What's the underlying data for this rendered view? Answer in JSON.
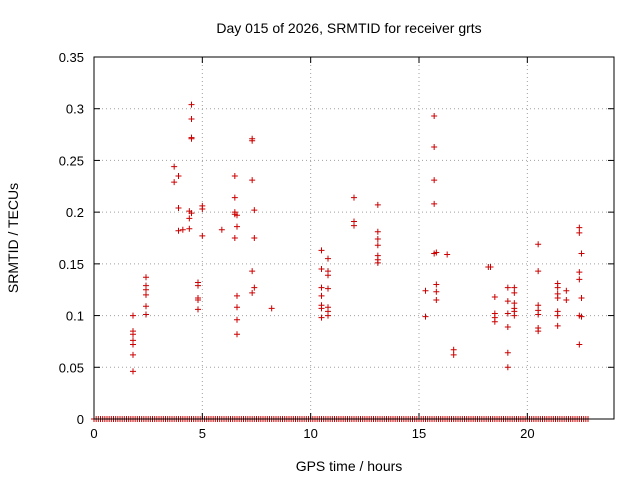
{
  "chart_data": {
    "type": "scatter",
    "title": "Day 015 of 2026, SRMTID for receiver grts",
    "xlabel": "GPS time / hours",
    "ylabel": "SRMTID / TECUs",
    "xlim": [
      0,
      24
    ],
    "ylim": [
      0,
      0.35
    ],
    "x_ticks": [
      0,
      5,
      10,
      15,
      20
    ],
    "x_tick_labels": [
      "0",
      "5",
      "10",
      "15",
      "20"
    ],
    "y_ticks": [
      0,
      0.05,
      0.1,
      0.15,
      0.2,
      0.25,
      0.3,
      0.35
    ],
    "y_tick_labels": [
      "0",
      "0.05",
      "0.1",
      "0.15",
      "0.2",
      "0.25",
      "0.3",
      "0.35"
    ],
    "grid": true,
    "marker": "+",
    "color": "#cc0000",
    "series": [
      {
        "name": "SRMTID",
        "points": [
          [
            1.8,
            0.1
          ],
          [
            1.8,
            0.085
          ],
          [
            1.8,
            0.082
          ],
          [
            1.8,
            0.076
          ],
          [
            1.8,
            0.072
          ],
          [
            1.8,
            0.062
          ],
          [
            1.8,
            0.046
          ],
          [
            2.4,
            0.137
          ],
          [
            2.4,
            0.129
          ],
          [
            2.4,
            0.125
          ],
          [
            2.4,
            0.12
          ],
          [
            2.4,
            0.109
          ],
          [
            2.4,
            0.101
          ],
          [
            3.7,
            0.244
          ],
          [
            3.7,
            0.229
          ],
          [
            3.9,
            0.235
          ],
          [
            3.9,
            0.204
          ],
          [
            3.9,
            0.182
          ],
          [
            4.1,
            0.183
          ],
          [
            4.4,
            0.201
          ],
          [
            4.4,
            0.194
          ],
          [
            4.4,
            0.184
          ],
          [
            4.5,
            0.304
          ],
          [
            4.5,
            0.29
          ],
          [
            4.5,
            0.272
          ],
          [
            4.5,
            0.271
          ],
          [
            4.5,
            0.199
          ],
          [
            4.8,
            0.132
          ],
          [
            4.8,
            0.129
          ],
          [
            4.8,
            0.117
          ],
          [
            4.8,
            0.115
          ],
          [
            4.8,
            0.106
          ],
          [
            5.0,
            0.206
          ],
          [
            5.0,
            0.203
          ],
          [
            5.0,
            0.177
          ],
          [
            5.9,
            0.183
          ],
          [
            6.5,
            0.235
          ],
          [
            6.5,
            0.214
          ],
          [
            6.5,
            0.2
          ],
          [
            6.5,
            0.198
          ],
          [
            6.5,
            0.175
          ],
          [
            6.6,
            0.197
          ],
          [
            6.6,
            0.186
          ],
          [
            6.6,
            0.119
          ],
          [
            6.6,
            0.108
          ],
          [
            6.6,
            0.096
          ],
          [
            6.6,
            0.082
          ],
          [
            7.3,
            0.271
          ],
          [
            7.3,
            0.269
          ],
          [
            7.3,
            0.231
          ],
          [
            7.4,
            0.202
          ],
          [
            7.4,
            0.175
          ],
          [
            7.3,
            0.143
          ],
          [
            7.4,
            0.127
          ],
          [
            7.3,
            0.122
          ],
          [
            8.2,
            0.107
          ],
          [
            10.5,
            0.163
          ],
          [
            10.5,
            0.145
          ],
          [
            10.5,
            0.127
          ],
          [
            10.5,
            0.119
          ],
          [
            10.5,
            0.11
          ],
          [
            10.5,
            0.107
          ],
          [
            10.5,
            0.098
          ],
          [
            10.8,
            0.155
          ],
          [
            10.8,
            0.143
          ],
          [
            10.8,
            0.139
          ],
          [
            10.8,
            0.126
          ],
          [
            10.8,
            0.108
          ],
          [
            10.8,
            0.104
          ],
          [
            10.8,
            0.1
          ],
          [
            12.0,
            0.214
          ],
          [
            12.0,
            0.191
          ],
          [
            12.0,
            0.187
          ],
          [
            13.1,
            0.207
          ],
          [
            13.1,
            0.181
          ],
          [
            13.1,
            0.174
          ],
          [
            13.1,
            0.168
          ],
          [
            13.1,
            0.158
          ],
          [
            13.1,
            0.154
          ],
          [
            13.1,
            0.151
          ],
          [
            15.3,
            0.124
          ],
          [
            15.3,
            0.099
          ],
          [
            15.7,
            0.293
          ],
          [
            15.7,
            0.263
          ],
          [
            15.7,
            0.231
          ],
          [
            15.7,
            0.208
          ],
          [
            15.7,
            0.16
          ],
          [
            15.8,
            0.161
          ],
          [
            15.8,
            0.13
          ],
          [
            15.8,
            0.123
          ],
          [
            15.8,
            0.115
          ],
          [
            16.3,
            0.159
          ],
          [
            16.6,
            0.067
          ],
          [
            16.6,
            0.062
          ],
          [
            18.2,
            0.147
          ],
          [
            18.3,
            0.147
          ],
          [
            18.5,
            0.118
          ],
          [
            18.5,
            0.102
          ],
          [
            18.5,
            0.098
          ],
          [
            18.5,
            0.094
          ],
          [
            19.1,
            0.127
          ],
          [
            19.1,
            0.114
          ],
          [
            19.1,
            0.102
          ],
          [
            19.1,
            0.089
          ],
          [
            19.1,
            0.064
          ],
          [
            19.1,
            0.05
          ],
          [
            19.4,
            0.127
          ],
          [
            19.4,
            0.122
          ],
          [
            19.4,
            0.112
          ],
          [
            19.4,
            0.107
          ],
          [
            19.4,
            0.104
          ],
          [
            19.4,
            0.1
          ],
          [
            20.5,
            0.169
          ],
          [
            20.5,
            0.143
          ],
          [
            20.5,
            0.11
          ],
          [
            20.5,
            0.105
          ],
          [
            20.5,
            0.101
          ],
          [
            20.5,
            0.088
          ],
          [
            20.5,
            0.085
          ],
          [
            21.4,
            0.131
          ],
          [
            21.4,
            0.127
          ],
          [
            21.4,
            0.121
          ],
          [
            21.4,
            0.117
          ],
          [
            21.4,
            0.104
          ],
          [
            21.4,
            0.1
          ],
          [
            21.4,
            0.09
          ],
          [
            21.8,
            0.124
          ],
          [
            21.8,
            0.115
          ],
          [
            22.4,
            0.185
          ],
          [
            22.4,
            0.18
          ],
          [
            22.4,
            0.142
          ],
          [
            22.4,
            0.135
          ],
          [
            22.4,
            0.1
          ],
          [
            22.4,
            0.072
          ],
          [
            22.5,
            0.16
          ],
          [
            22.5,
            0.117
          ],
          [
            22.5,
            0.099
          ]
        ],
        "zero_baseline": {
          "x_start": 0.0,
          "x_end": 22.8,
          "step": 0.1,
          "value": 0
        }
      }
    ]
  }
}
